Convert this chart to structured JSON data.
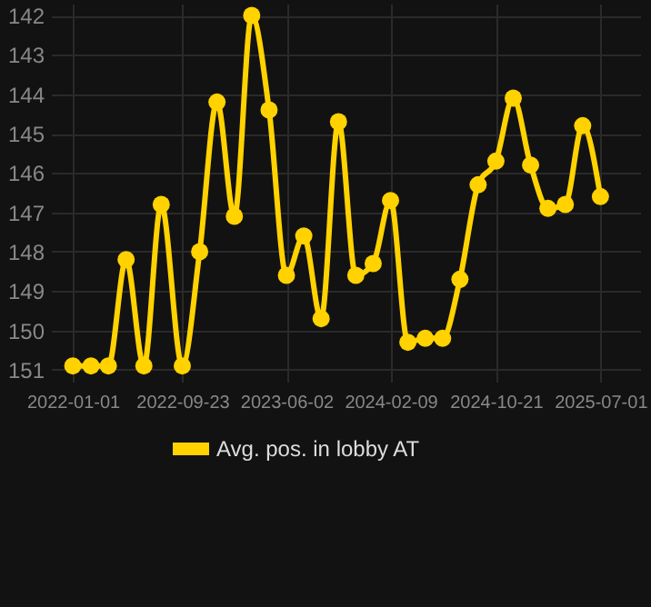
{
  "chart_data": {
    "type": "line",
    "x": [
      "2022-01-01",
      "2022-02-14",
      "2022-03-28",
      "2022-05-10",
      "2022-06-22",
      "2022-08-03",
      "2022-09-23",
      "2022-11-04",
      "2022-12-16",
      "2023-01-27",
      "2023-03-10",
      "2023-04-21",
      "2023-06-02",
      "2023-07-14",
      "2023-08-25",
      "2023-10-06",
      "2023-11-17",
      "2023-12-29",
      "2024-02-09",
      "2024-03-22",
      "2024-05-03",
      "2024-06-14",
      "2024-07-26",
      "2024-09-08",
      "2024-10-21",
      "2024-12-02",
      "2025-01-13",
      "2025-02-24",
      "2025-04-07",
      "2025-05-19",
      "2025-07-01"
    ],
    "series": [
      {
        "name": "Avg. pos. in lobby AT",
        "color": "#ffd200",
        "values": [
          150.9,
          150.9,
          150.9,
          148.2,
          150.9,
          146.8,
          150.9,
          148.0,
          144.2,
          147.1,
          142.0,
          144.4,
          148.6,
          147.6,
          149.7,
          144.7,
          148.6,
          148.3,
          146.7,
          150.3,
          150.2,
          150.2,
          148.7,
          146.3,
          145.7,
          144.1,
          145.8,
          146.9,
          146.8,
          144.8,
          146.6
        ]
      }
    ],
    "xlim": [
      "2021-11-09",
      "2025-10-05"
    ],
    "xticks": [
      "2022-01-01",
      "2022-09-23",
      "2023-06-02",
      "2024-02-09",
      "2024-10-21",
      "2025-07-01"
    ],
    "ylim": [
      151.3,
      141.7
    ],
    "yticks": [
      142,
      143,
      144,
      145,
      146,
      147,
      148,
      149,
      150,
      151
    ],
    "grid": true,
    "legend": "bottom",
    "marker": "circle",
    "line_style": "solid"
  }
}
